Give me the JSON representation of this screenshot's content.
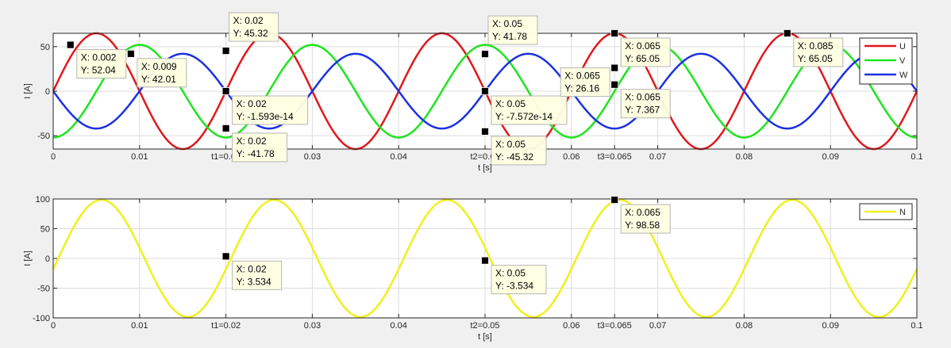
{
  "chart_data": [
    {
      "type": "line",
      "title": "",
      "xlabel": "t [s]",
      "ylabel": "I [A]",
      "xlim": [
        0,
        0.1
      ],
      "ylim": [
        -65,
        65
      ],
      "grid": true,
      "legend_placement": "top-right",
      "x_ticks": [
        {
          "value": 0,
          "label": "0"
        },
        {
          "value": 0.01,
          "label": "0.01"
        },
        {
          "value": 0.02,
          "label": "t1=0.02"
        },
        {
          "value": 0.03,
          "label": "0.03"
        },
        {
          "value": 0.04,
          "label": "0.04"
        },
        {
          "value": 0.05,
          "label": "t2=0.05"
        },
        {
          "value": 0.06,
          "label": "0.06"
        },
        {
          "value": 0.065,
          "label": "t3=0.065"
        },
        {
          "value": 0.07,
          "label": "0.07"
        },
        {
          "value": 0.08,
          "label": "0.08"
        },
        {
          "value": 0.09,
          "label": "0.09"
        },
        {
          "value": 0.1,
          "label": "0.1"
        }
      ],
      "y_ticks": [
        {
          "value": -50,
          "label": "-50"
        },
        {
          "value": 0,
          "label": "0"
        },
        {
          "value": 50,
          "label": "50"
        }
      ],
      "series": [
        {
          "name": "U",
          "color": "#e0191c",
          "amplitude": 65.05,
          "frequency_hz": 50,
          "phase_deg": 0
        },
        {
          "name": "V",
          "color": "#1ee51e",
          "amplitude": 52.04,
          "frequency_hz": 50,
          "phase_deg": 90
        },
        {
          "name": "W",
          "color": "#1c31e0",
          "amplitude": 42.01,
          "frequency_hz": 50,
          "phase_deg": 180
        }
      ],
      "datatips": [
        {
          "x": 0.002,
          "y": 52.04,
          "text_x": "X: 0.002",
          "text_y": "Y: 52.04",
          "side": "right"
        },
        {
          "x": 0.009,
          "y": 42.01,
          "text_x": "X: 0.009",
          "text_y": "Y: 42.01",
          "side": "right"
        },
        {
          "x": 0.02,
          "y": 45.32,
          "text_x": "X: 0.02",
          "text_y": "Y: 45.32",
          "side": "top"
        },
        {
          "x": 0.02,
          "y": -1.593e-14,
          "text_x": "X: 0.02",
          "text_y": "Y: -1.593e-14",
          "side": "right"
        },
        {
          "x": 0.02,
          "y": -41.78,
          "text_x": "X: 0.02",
          "text_y": "Y: -41.78",
          "side": "right"
        },
        {
          "x": 0.05,
          "y": 41.78,
          "text_x": "X: 0.05",
          "text_y": "Y: 41.78",
          "side": "top"
        },
        {
          "x": 0.05,
          "y": -7.572e-14,
          "text_x": "X: 0.05",
          "text_y": "Y: -7.572e-14",
          "side": "right"
        },
        {
          "x": 0.05,
          "y": -45.32,
          "text_x": "X: 0.05",
          "text_y": "Y: -45.32",
          "side": "right"
        },
        {
          "x": 0.065,
          "y": 65.05,
          "text_x": "X: 0.065",
          "text_y": "Y: 65.05",
          "side": "right"
        },
        {
          "x": 0.065,
          "y": 26.16,
          "text_x": "X: 0.065",
          "text_y": "Y: 26.16",
          "side": "left"
        },
        {
          "x": 0.065,
          "y": 7.367,
          "text_x": "X: 0.065",
          "text_y": "Y: 7.367",
          "side": "right"
        },
        {
          "x": 0.085,
          "y": 65.05,
          "text_x": "X: 0.085",
          "text_y": "Y: 65.05",
          "side": "right"
        }
      ]
    },
    {
      "type": "line",
      "title": "",
      "xlabel": "t [s]",
      "ylabel": "I [A]",
      "xlim": [
        0,
        0.1
      ],
      "ylim": [
        -100,
        100
      ],
      "grid": true,
      "legend_placement": "top-right",
      "x_ticks": [
        {
          "value": 0,
          "label": "0"
        },
        {
          "value": 0.01,
          "label": "0.01"
        },
        {
          "value": 0.02,
          "label": "t1=0.02"
        },
        {
          "value": 0.03,
          "label": "0.03"
        },
        {
          "value": 0.04,
          "label": "0.04"
        },
        {
          "value": 0.05,
          "label": "t2=0.05"
        },
        {
          "value": 0.06,
          "label": "0.06"
        },
        {
          "value": 0.065,
          "label": "t3=0.065"
        },
        {
          "value": 0.07,
          "label": "0.07"
        },
        {
          "value": 0.08,
          "label": "0.08"
        },
        {
          "value": 0.09,
          "label": "0.09"
        },
        {
          "value": 0.1,
          "label": "0.1"
        }
      ],
      "y_ticks": [
        {
          "value": -100,
          "label": "-100"
        },
        {
          "value": -50,
          "label": "-50"
        },
        {
          "value": 0,
          "label": "0"
        },
        {
          "value": 50,
          "label": "50"
        },
        {
          "value": 100,
          "label": "100"
        }
      ],
      "series": [
        {
          "name": "N",
          "color": "#f0f01e",
          "amplitude": 98.58,
          "frequency_hz": 50,
          "phase_deg": 10.5
        }
      ],
      "datatips": [
        {
          "x": 0.02,
          "y": 3.534,
          "text_x": "X: 0.02",
          "text_y": "Y: 3.534",
          "side": "right"
        },
        {
          "x": 0.05,
          "y": -3.534,
          "text_x": "X: 0.05",
          "text_y": "Y: -3.534",
          "side": "right"
        },
        {
          "x": 0.065,
          "y": 98.58,
          "text_x": "X: 0.065",
          "text_y": "Y: 98.58",
          "side": "right"
        }
      ]
    }
  ]
}
